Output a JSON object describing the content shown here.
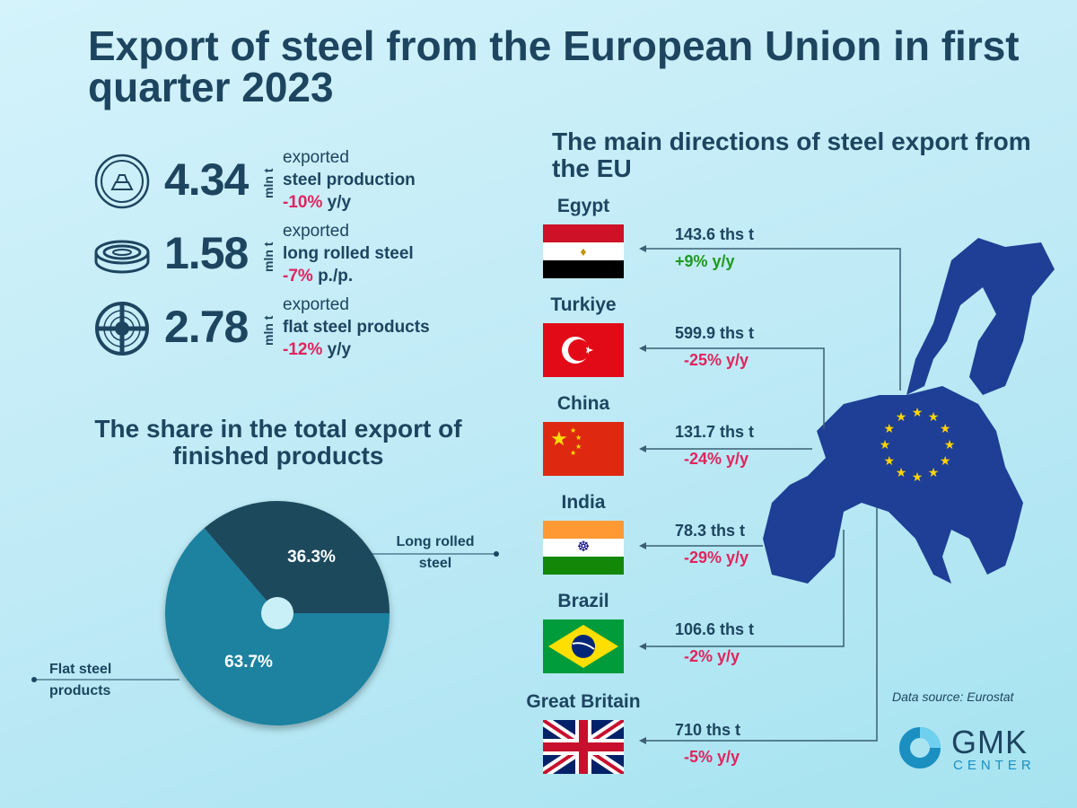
{
  "title": "Export of steel from the European Union in first quarter 2023",
  "stats": [
    {
      "icon": "ingot-coin-icon",
      "value": "4.34",
      "unit": "mln t",
      "line1": "exported",
      "line2": "steel production",
      "change": "-10%",
      "period": "y/y"
    },
    {
      "icon": "wire-coil-icon",
      "value": "1.58",
      "unit": "mln t",
      "line1": "exported",
      "line2": "long rolled steel",
      "change": "-7%",
      "period": "p./p."
    },
    {
      "icon": "steel-coil-icon",
      "value": "2.78",
      "unit": "mln t",
      "line1": "exported",
      "line2": "flat steel products",
      "change": "-12%",
      "period": "y/y"
    }
  ],
  "share_title": "The share in the total export of finished products",
  "directions_title": "The main directions of steel export from the EU",
  "countries": [
    {
      "name": "Egypt",
      "value": "143.6 ths t",
      "change": "+9% y/y",
      "trend": "up"
    },
    {
      "name": "Turkiye",
      "value": "599.9 ths t",
      "change": "-25% y/y",
      "trend": "down"
    },
    {
      "name": "China",
      "value": "131.7 ths t",
      "change": "-24% y/y",
      "trend": "down"
    },
    {
      "name": "India",
      "value": "78.3 ths t",
      "change": "-29% y/y",
      "trend": "down"
    },
    {
      "name": "Brazil",
      "value": "106.6 ths t",
      "change": "-2% y/y",
      "trend": "down"
    },
    {
      "name": "Great Britain",
      "value": "710 ths t",
      "change": "-5% y/y",
      "trend": "down"
    }
  ],
  "source": "Data source: Eurostat",
  "logo": {
    "line1": "GMK",
    "line2": "CENTER"
  },
  "colors": {
    "title": "#1d4560",
    "negative": "#e0245e",
    "positive": "#1e9a1e",
    "eu_blue": "#1e3f95",
    "eu_star": "#ffd400"
  },
  "chart_data": {
    "type": "pie",
    "title": "The share in the total export of finished products",
    "categories": [
      "Long rolled steel",
      "Flat steel products"
    ],
    "values": [
      36.3,
      63.7
    ],
    "labels": [
      "36.3%",
      "63.7%"
    ],
    "colors": [
      "#1f4a5c",
      "#1a82a0"
    ],
    "donut_hole": true
  }
}
